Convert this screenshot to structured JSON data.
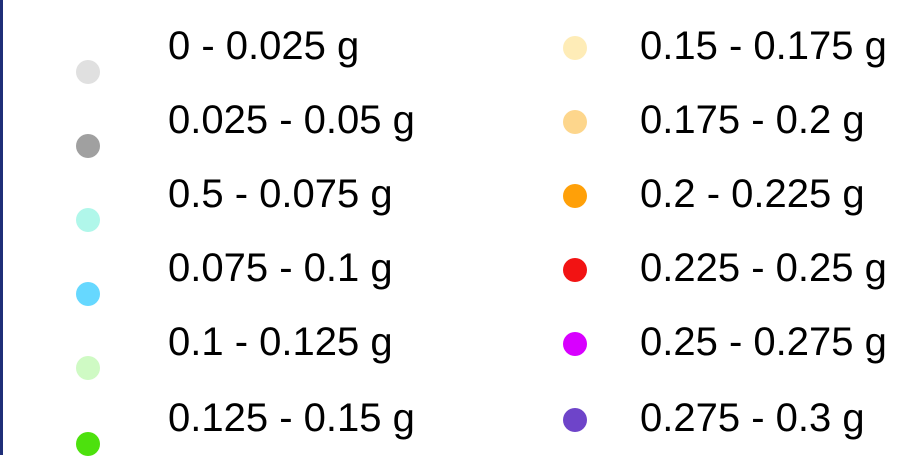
{
  "legend": {
    "left_column": [
      {
        "label": "0 - 0.025 g",
        "color": "#e0e0e0"
      },
      {
        "label": "0.025 - 0.05 g",
        "color": "#a0a0a0"
      },
      {
        "label": "0.5 - 0.075 g",
        "color": "#b0f7ea"
      },
      {
        "label": "0.075 - 0.1 g",
        "color": "#66d8ff"
      },
      {
        "label": "0.1 - 0.125 g",
        "color": "#cffac4"
      },
      {
        "label": "0.125 - 0.15 g",
        "color": "#4de10d"
      }
    ],
    "right_column": [
      {
        "label": "0.15 - 0.175 g",
        "color": "#feecb7"
      },
      {
        "label": "0.175 - 0.2 g",
        "color": "#fdd68c"
      },
      {
        "label": "0.2 - 0.225 g",
        "color": "#ffa008"
      },
      {
        "label": "0.225 - 0.25 g",
        "color": "#f21313"
      },
      {
        "label": "0.25 - 0.275 g",
        "color": "#d800ff"
      },
      {
        "label": "0.275 - 0.3 g",
        "color": "#6e44c9"
      }
    ]
  }
}
